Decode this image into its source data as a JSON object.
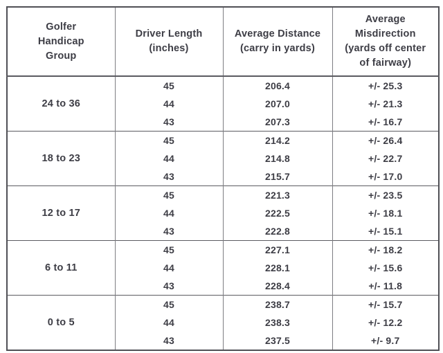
{
  "table": {
    "columns": [
      {
        "id": "group",
        "label": "Golfer\nHandicap\nGroup"
      },
      {
        "id": "length",
        "label": "Driver Length\n(inches)"
      },
      {
        "id": "distance",
        "label": "Average Distance\n(carry in yards)"
      },
      {
        "id": "misdirection",
        "label": "Average\nMisdirection\n(yards off center\nof fairway)"
      }
    ],
    "groups": [
      {
        "label": "24 to 36",
        "rows": [
          {
            "length": "45",
            "distance": "206.4",
            "misdirection": "+/- 25.3"
          },
          {
            "length": "44",
            "distance": "207.0",
            "misdirection": "+/- 21.3"
          },
          {
            "length": "43",
            "distance": "207.3",
            "misdirection": "+/- 16.7"
          }
        ]
      },
      {
        "label": "18 to 23",
        "rows": [
          {
            "length": "45",
            "distance": "214.2",
            "misdirection": "+/- 26.4"
          },
          {
            "length": "44",
            "distance": "214.8",
            "misdirection": "+/- 22.7"
          },
          {
            "length": "43",
            "distance": "215.7",
            "misdirection": "+/- 17.0"
          }
        ]
      },
      {
        "label": "12 to 17",
        "rows": [
          {
            "length": "45",
            "distance": "221.3",
            "misdirection": "+/- 23.5"
          },
          {
            "length": "44",
            "distance": "222.5",
            "misdirection": "+/- 18.1"
          },
          {
            "length": "43",
            "distance": "222.8",
            "misdirection": "+/- 15.1"
          }
        ]
      },
      {
        "label": "6 to 11",
        "rows": [
          {
            "length": "45",
            "distance": "227.1",
            "misdirection": "+/- 18.2"
          },
          {
            "length": "44",
            "distance": "228.1",
            "misdirection": "+/- 15.6"
          },
          {
            "length": "43",
            "distance": "228.4",
            "misdirection": "+/- 11.8"
          }
        ]
      },
      {
        "label": "0 to 5",
        "rows": [
          {
            "length": "45",
            "distance": "238.7",
            "misdirection": "+/- 15.7"
          },
          {
            "length": "44",
            "distance": "238.3",
            "misdirection": "+/- 12.2"
          },
          {
            "length": "43",
            "distance": "237.5",
            "misdirection": "+/- 9.7"
          }
        ]
      }
    ],
    "colors": {
      "text": "#3d3d45",
      "border_outer": "#4f4f55",
      "border_inner": "#7d7d82",
      "background": "#ffffff"
    }
  }
}
